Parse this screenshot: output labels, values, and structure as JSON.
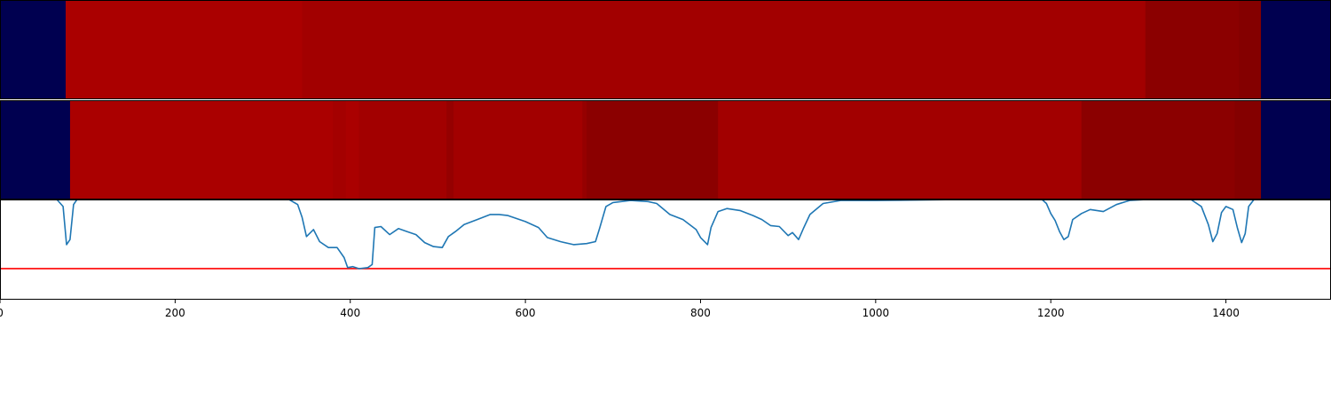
{
  "chart_data": [
    {
      "type": "heatmap",
      "xlim": [
        0,
        1520
      ],
      "colors": {
        "background": "#000050",
        "bright": "#aa0000",
        "mid": "#a00000",
        "dark": "#8b0000",
        "darker": "#840000"
      },
      "segments": [
        {
          "start": 0,
          "end": 75,
          "color": "#000050"
        },
        {
          "start": 75,
          "end": 345,
          "color": "#aa0000"
        },
        {
          "start": 345,
          "end": 1308,
          "color": "#a20000"
        },
        {
          "start": 1308,
          "end": 1415,
          "color": "#8b0000"
        },
        {
          "start": 1415,
          "end": 1440,
          "color": "#840000"
        },
        {
          "start": 1440,
          "end": 1520,
          "color": "#000050"
        }
      ]
    },
    {
      "type": "heatmap",
      "xlim": [
        0,
        1520
      ],
      "segments": [
        {
          "start": 0,
          "end": 80,
          "color": "#000050"
        },
        {
          "start": 80,
          "end": 380,
          "color": "#aa0000"
        },
        {
          "start": 380,
          "end": 395,
          "color": "#a40000"
        },
        {
          "start": 395,
          "end": 410,
          "color": "#aa0000"
        },
        {
          "start": 410,
          "end": 510,
          "color": "#a20000"
        },
        {
          "start": 510,
          "end": 518,
          "color": "#950000"
        },
        {
          "start": 518,
          "end": 665,
          "color": "#a20000"
        },
        {
          "start": 665,
          "end": 670,
          "color": "#950000"
        },
        {
          "start": 670,
          "end": 820,
          "color": "#8b0000"
        },
        {
          "start": 820,
          "end": 1235,
          "color": "#a20000"
        },
        {
          "start": 1235,
          "end": 1410,
          "color": "#8b0000"
        },
        {
          "start": 1410,
          "end": 1440,
          "color": "#840000"
        },
        {
          "start": 1440,
          "end": 1520,
          "color": "#000050"
        }
      ]
    },
    {
      "type": "line",
      "xlim": [
        0,
        1520
      ],
      "ylim": [
        0,
        1
      ],
      "x_ticks": [
        0,
        200,
        400,
        600,
        800,
        1000,
        1200,
        1400
      ],
      "x_tick_labels": [
        "0",
        "200",
        "400",
        "600",
        "800",
        "1000",
        "1200",
        "1400"
      ],
      "threshold": {
        "value": 0.31,
        "color": "#ff0000"
      },
      "series": [
        {
          "color": "#1f77b4",
          "x": [
            0,
            65,
            72,
            76,
            80,
            84,
            88,
            95,
            100,
            330,
            340,
            345,
            350,
            358,
            365,
            375,
            385,
            393,
            397,
            403,
            410,
            420,
            425,
            428,
            435,
            445,
            455,
            465,
            475,
            485,
            495,
            505,
            512,
            520,
            530,
            545,
            560,
            570,
            580,
            600,
            615,
            625,
            640,
            655,
            670,
            680,
            685,
            692,
            700,
            720,
            740,
            750,
            765,
            780,
            795,
            800,
            808,
            812,
            820,
            830,
            845,
            860,
            870,
            880,
            890,
            900,
            905,
            912,
            918,
            925,
            940,
            960,
            1000,
            1100,
            1190,
            1195,
            1200,
            1205,
            1210,
            1215,
            1220,
            1225,
            1235,
            1245,
            1260,
            1275,
            1290,
            1310,
            1360,
            1372,
            1380,
            1385,
            1390,
            1395,
            1400,
            1408,
            1413,
            1418,
            1422,
            1426,
            1432,
            1440,
            1520
          ],
          "y": [
            1.0,
            1.0,
            0.93,
            0.55,
            0.6,
            0.95,
            1.0,
            1.0,
            1.0,
            1.0,
            0.95,
            0.82,
            0.63,
            0.7,
            0.58,
            0.52,
            0.52,
            0.42,
            0.32,
            0.33,
            0.31,
            0.32,
            0.35,
            0.72,
            0.73,
            0.65,
            0.71,
            0.68,
            0.65,
            0.57,
            0.53,
            0.52,
            0.63,
            0.68,
            0.75,
            0.8,
            0.85,
            0.85,
            0.84,
            0.78,
            0.72,
            0.62,
            0.58,
            0.55,
            0.56,
            0.58,
            0.72,
            0.93,
            0.97,
            0.99,
            0.98,
            0.96,
            0.85,
            0.8,
            0.7,
            0.62,
            0.55,
            0.72,
            0.88,
            0.91,
            0.89,
            0.84,
            0.8,
            0.74,
            0.73,
            0.64,
            0.67,
            0.6,
            0.72,
            0.85,
            0.96,
            0.99,
            0.99,
            1.0,
            1.0,
            0.96,
            0.86,
            0.79,
            0.68,
            0.6,
            0.63,
            0.8,
            0.86,
            0.9,
            0.88,
            0.95,
            0.99,
            1.0,
            1.0,
            0.93,
            0.75,
            0.58,
            0.66,
            0.87,
            0.93,
            0.9,
            0.72,
            0.57,
            0.66,
            0.93,
            1.0,
            1.0,
            1.0
          ]
        }
      ]
    }
  ]
}
